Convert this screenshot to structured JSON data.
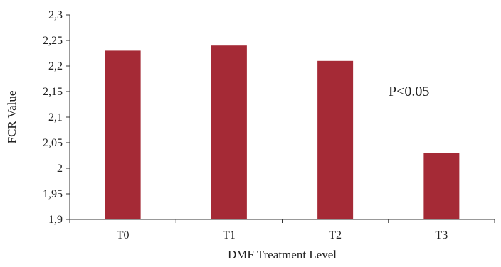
{
  "chart_data": {
    "type": "bar",
    "categories": [
      "T0",
      "T1",
      "T2",
      "T3"
    ],
    "values": [
      2.23,
      2.24,
      2.21,
      2.03
    ],
    "title": "",
    "xlabel": "DMF Treatment Level",
    "ylabel": "FCR Value",
    "ylim": [
      1.9,
      2.3
    ],
    "yticks": [
      1.9,
      1.95,
      2,
      2.05,
      2.1,
      2.15,
      2.2,
      2.25,
      2.3
    ],
    "ytick_labels": [
      "1,9",
      "1,95",
      "2",
      "2,05",
      "2,1",
      "2,15",
      "2,2",
      "2,25",
      "2,3"
    ],
    "annotation": "P<0.05",
    "grid": false,
    "bar_color": "#a52a36"
  }
}
